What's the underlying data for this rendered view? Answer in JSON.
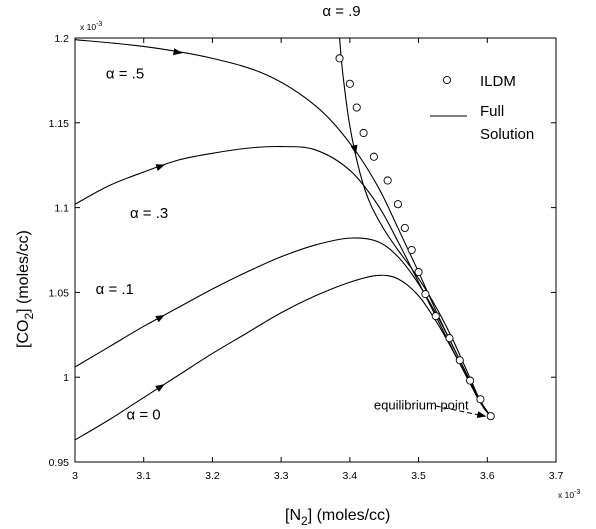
{
  "chart_data": {
    "type": "line",
    "xlabel": {
      "main": "[N",
      "sub": "2",
      "rest": "] (moles/cc)"
    },
    "ylabel": {
      "main": "[CO",
      "sub": "2",
      "rest": "] (moles/cc)"
    },
    "x_multiplier": "x 10",
    "x_multiplier_exp": "-3",
    "y_multiplier": "x 10",
    "y_multiplier_exp": "-3",
    "xlim": [
      3.0,
      3.7
    ],
    "ylim": [
      0.95,
      1.2
    ],
    "xticks": [
      "3",
      "3.1",
      "3.2",
      "3.3",
      "3.4",
      "3.5",
      "3.6",
      "3.7"
    ],
    "yticks": [
      "0.95",
      "1",
      "1.05",
      "1.1",
      "1.15",
      "1.2"
    ],
    "grid": false,
    "legend": {
      "position": "top-right",
      "markers_label": "ILDM",
      "line_label_1": "Full",
      "line_label_2": "Solution"
    },
    "series": [
      {
        "name": "α = .9",
        "x": [
          3.385,
          3.39,
          3.4,
          3.415,
          3.43,
          3.45,
          3.47,
          3.49,
          3.51,
          3.53,
          3.55,
          3.57,
          3.59,
          3.605
        ],
        "y": [
          1.2,
          1.178,
          1.148,
          1.12,
          1.102,
          1.087,
          1.075,
          1.064,
          1.052,
          1.038,
          1.022,
          1.004,
          0.986,
          0.977
        ]
      },
      {
        "name": "α = .5",
        "x": [
          3.0,
          3.1,
          3.2,
          3.28,
          3.35,
          3.4,
          3.44,
          3.47,
          3.5,
          3.53,
          3.56,
          3.59,
          3.605
        ],
        "y": [
          1.199,
          1.195,
          1.188,
          1.178,
          1.16,
          1.138,
          1.113,
          1.088,
          1.062,
          1.035,
          1.01,
          0.985,
          0.977
        ]
      },
      {
        "name": "α = .3",
        "x": [
          3.0,
          3.05,
          3.1,
          3.15,
          3.2,
          3.25,
          3.3,
          3.35,
          3.4,
          3.44,
          3.47,
          3.5,
          3.53,
          3.56,
          3.59,
          3.605
        ],
        "y": [
          1.102,
          1.113,
          1.121,
          1.128,
          1.132,
          1.135,
          1.136,
          1.134,
          1.122,
          1.102,
          1.08,
          1.056,
          1.032,
          1.008,
          0.985,
          0.977
        ]
      },
      {
        "name": "α = .1",
        "x": [
          3.0,
          3.05,
          3.1,
          3.15,
          3.2,
          3.25,
          3.3,
          3.35,
          3.4,
          3.44,
          3.47,
          3.5,
          3.53,
          3.56,
          3.59,
          3.605
        ],
        "y": [
          1.006,
          1.018,
          1.03,
          1.041,
          1.052,
          1.062,
          1.071,
          1.078,
          1.082,
          1.08,
          1.071,
          1.055,
          1.034,
          1.01,
          0.986,
          0.977
        ]
      },
      {
        "name": "α = 0",
        "x": [
          3.0,
          3.05,
          3.1,
          3.15,
          3.2,
          3.25,
          3.3,
          3.35,
          3.4,
          3.44,
          3.47,
          3.5,
          3.53,
          3.56,
          3.59,
          3.605
        ],
        "y": [
          0.963,
          0.975,
          0.988,
          1.001,
          1.014,
          1.026,
          1.038,
          1.048,
          1.056,
          1.06,
          1.058,
          1.048,
          1.03,
          1.008,
          0.985,
          0.977
        ]
      }
    ],
    "ildm": {
      "name": "ILDM",
      "x": [
        3.385,
        3.4,
        3.41,
        3.42,
        3.435,
        3.455,
        3.47,
        3.48,
        3.49,
        3.5,
        3.51,
        3.525,
        3.545,
        3.56,
        3.575,
        3.59,
        3.605
      ],
      "y": [
        1.188,
        1.173,
        1.159,
        1.144,
        1.13,
        1.116,
        1.102,
        1.088,
        1.075,
        1.062,
        1.049,
        1.036,
        1.023,
        1.01,
        0.998,
        0.987,
        0.977
      ]
    },
    "curve_labels": [
      {
        "text": "α = .9",
        "x": 3.36,
        "y": 1.213
      },
      {
        "text": "α = .5",
        "x": 3.045,
        "y": 1.176
      },
      {
        "text": "α = .3",
        "x": 3.08,
        "y": 1.094
      },
      {
        "text": "α = .1",
        "x": 3.03,
        "y": 1.049
      },
      {
        "text": "α = 0",
        "x": 3.075,
        "y": 0.975
      }
    ],
    "annotation": {
      "text": "equilibrium point",
      "text_x": 3.435,
      "text_y": 0.981,
      "arrow_from": [
        3.525,
        0.983
      ],
      "arrow_to": [
        3.597,
        0.977
      ]
    }
  }
}
